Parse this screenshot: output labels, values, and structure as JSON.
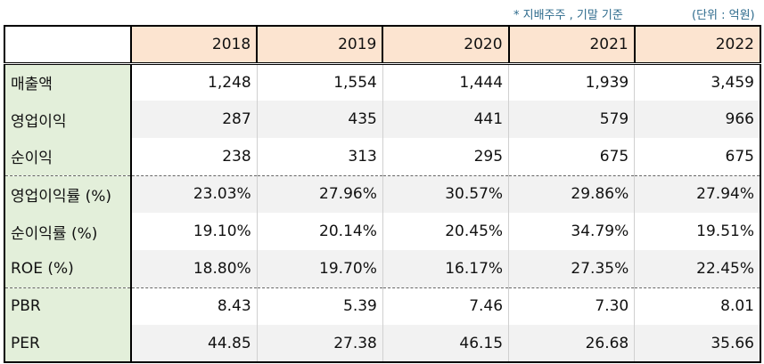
{
  "notes": {
    "basis": "* 지배주주 , 기말 기준",
    "unit": "(단위 : 억원)"
  },
  "table": {
    "years": [
      "2018",
      "2019",
      "2020",
      "2021",
      "2022"
    ],
    "rows": [
      {
        "label": "매출액",
        "values": [
          "1,248",
          "1,554",
          "1,444",
          "1,939",
          "3,459"
        ]
      },
      {
        "label": "영업이익",
        "values": [
          "287",
          "435",
          "441",
          "579",
          "966"
        ]
      },
      {
        "label": "순이익",
        "values": [
          "238",
          "313",
          "295",
          "675",
          "675"
        ]
      },
      {
        "label": "영업이익률 (%)",
        "values": [
          "23.03%",
          "27.96%",
          "30.57%",
          "29.86%",
          "27.94%"
        ]
      },
      {
        "label": "순이익률 (%)",
        "values": [
          "19.10%",
          "20.14%",
          "20.45%",
          "34.79%",
          "19.51%"
        ]
      },
      {
        "label": "ROE (%)",
        "values": [
          "18.80%",
          "19.70%",
          "16.17%",
          "27.35%",
          "22.45%"
        ]
      },
      {
        "label": "PBR",
        "values": [
          "8.43",
          "5.39",
          "7.46",
          "7.30",
          "8.01"
        ]
      },
      {
        "label": "PER",
        "values": [
          "44.85",
          "27.38",
          "46.15",
          "26.68",
          "35.66"
        ]
      }
    ]
  },
  "colors": {
    "header_bg": "#fce4d0",
    "label_bg": "#e3efda",
    "shade_bg": "#f2f2f2",
    "note_text": "#2d6a8c"
  }
}
